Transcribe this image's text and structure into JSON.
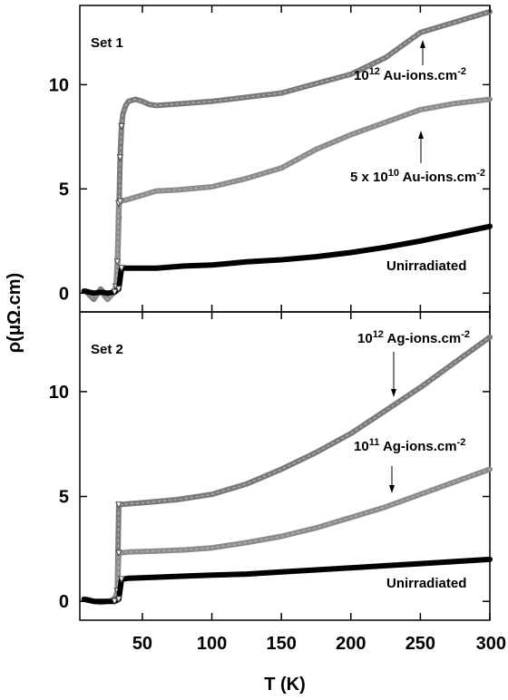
{
  "chart_data": {
    "type": "line",
    "xlabel": "T (K)",
    "ylabel": "ρ(μΩ.cm)",
    "xlim": [
      5,
      300
    ],
    "x_ticks": [
      50,
      100,
      150,
      200,
      250,
      300
    ],
    "panels": [
      {
        "label": "Set 1",
        "ylim": [
          -0.9,
          13.8
        ],
        "y_ticks": [
          0,
          5,
          10
        ],
        "series": [
          {
            "name": "10^12 Au-ions.cm^-2",
            "annotation": {
              "base": "10",
              "exp": "12",
              "rest": " Au-ions.cm",
              "sup": "-2"
            },
            "color": "#7a7a7a",
            "points": [
              [
                10,
                0.05
              ],
              [
                15,
                -0.3
              ],
              [
                20,
                0.2
              ],
              [
                25,
                -0.2
              ],
              [
                29,
                0.0
              ],
              [
                31,
                0.3
              ],
              [
                32,
                1.0
              ],
              [
                33,
                3.5
              ],
              [
                34,
                6.5
              ],
              [
                35,
                8.0
              ],
              [
                36,
                8.6
              ],
              [
                38,
                9.0
              ],
              [
                40,
                9.2
              ],
              [
                45,
                9.3
              ],
              [
                50,
                9.2
              ],
              [
                55,
                9.05
              ],
              [
                60,
                9.0
              ],
              [
                80,
                9.1
              ],
              [
                100,
                9.2
              ],
              [
                125,
                9.4
              ],
              [
                150,
                9.6
              ],
              [
                175,
                10.05
              ],
              [
                200,
                10.5
              ],
              [
                225,
                11.3
              ],
              [
                250,
                12.5
              ],
              [
                275,
                13.0
              ],
              [
                300,
                13.5
              ]
            ]
          },
          {
            "name": "5 x 10^10 Au-ions.cm^-2",
            "annotation": {
              "base": "5 x 10",
              "exp": "10",
              "rest": " Au-ions.cm",
              "sup": "-2"
            },
            "color": "#8c8c8c",
            "points": [
              [
                10,
                0.1
              ],
              [
                15,
                -0.2
              ],
              [
                20,
                0.1
              ],
              [
                25,
                -0.3
              ],
              [
                29,
                0.0
              ],
              [
                31,
                0.3
              ],
              [
                32,
                1.5
              ],
              [
                33,
                4.3
              ],
              [
                34,
                4.4
              ],
              [
                40,
                4.5
              ],
              [
                50,
                4.7
              ],
              [
                60,
                4.9
              ],
              [
                75,
                4.95
              ],
              [
                100,
                5.1
              ],
              [
                125,
                5.5
              ],
              [
                150,
                6.0
              ],
              [
                175,
                6.9
              ],
              [
                200,
                7.6
              ],
              [
                225,
                8.2
              ],
              [
                250,
                8.8
              ],
              [
                275,
                9.1
              ],
              [
                300,
                9.3
              ]
            ]
          },
          {
            "name": "Unirradiated",
            "annotation": {
              "base": "Unirradiated",
              "exp": "",
              "rest": "",
              "sup": ""
            },
            "color": "#000000",
            "points": [
              [
                8,
                0.1
              ],
              [
                15,
                0.0
              ],
              [
                20,
                0.05
              ],
              [
                25,
                0.0
              ],
              [
                30,
                0.05
              ],
              [
                33,
                0.2
              ],
              [
                35,
                1.2
              ],
              [
                40,
                1.2
              ],
              [
                60,
                1.2
              ],
              [
                80,
                1.3
              ],
              [
                100,
                1.35
              ],
              [
                125,
                1.5
              ],
              [
                150,
                1.6
              ],
              [
                175,
                1.75
              ],
              [
                200,
                1.95
              ],
              [
                225,
                2.2
              ],
              [
                250,
                2.5
              ],
              [
                275,
                2.85
              ],
              [
                300,
                3.2
              ]
            ]
          }
        ],
        "annotations": [
          "10^12 Au-ions.cm^-2",
          "5 x 10^10 Au-ions.cm^-2",
          "Unirradiated"
        ]
      },
      {
        "label": "Set 2",
        "ylim": [
          -0.9,
          13.8
        ],
        "y_ticks": [
          0,
          5,
          10
        ],
        "series": [
          {
            "name": "10^12 Ag-ions.cm^-2",
            "annotation": {
              "base": "10",
              "exp": "12",
              "rest": " Ag-ions.cm",
              "sup": "-2"
            },
            "color": "#7a7a7a",
            "points": [
              [
                10,
                0.1
              ],
              [
                15,
                0.0
              ],
              [
                20,
                -0.05
              ],
              [
                25,
                0.0
              ],
              [
                30,
                0.05
              ],
              [
                32,
                0.5
              ],
              [
                33,
                4.6
              ],
              [
                40,
                4.65
              ],
              [
                50,
                4.7
              ],
              [
                75,
                4.85
              ],
              [
                100,
                5.1
              ],
              [
                125,
                5.6
              ],
              [
                150,
                6.3
              ],
              [
                175,
                7.1
              ],
              [
                200,
                8.0
              ],
              [
                225,
                9.1
              ],
              [
                250,
                10.2
              ],
              [
                275,
                11.4
              ],
              [
                300,
                12.6
              ]
            ]
          },
          {
            "name": "10^11 Ag-ions.cm^-2",
            "annotation": {
              "base": "10",
              "exp": "11",
              "rest": " Ag-ions.cm",
              "sup": "-2"
            },
            "color": "#8c8c8c",
            "points": [
              [
                10,
                0.1
              ],
              [
                15,
                0.0
              ],
              [
                20,
                -0.05
              ],
              [
                25,
                0.0
              ],
              [
                30,
                0.05
              ],
              [
                32,
                0.5
              ],
              [
                33,
                2.3
              ],
              [
                40,
                2.35
              ],
              [
                60,
                2.4
              ],
              [
                80,
                2.45
              ],
              [
                100,
                2.55
              ],
              [
                125,
                2.8
              ],
              [
                150,
                3.1
              ],
              [
                175,
                3.5
              ],
              [
                200,
                4.0
              ],
              [
                225,
                4.5
              ],
              [
                250,
                5.1
              ],
              [
                275,
                5.7
              ],
              [
                300,
                6.3
              ]
            ]
          },
          {
            "name": "Unirradiated",
            "annotation": {
              "base": "Unirradiated",
              "exp": "",
              "rest": "",
              "sup": ""
            },
            "color": "#000000",
            "points": [
              [
                8,
                0.1
              ],
              [
                15,
                0.0
              ],
              [
                20,
                0.0
              ],
              [
                25,
                0.0
              ],
              [
                30,
                0.0
              ],
              [
                33,
                0.1
              ],
              [
                35,
                1.05
              ],
              [
                40,
                1.1
              ],
              [
                60,
                1.15
              ],
              [
                80,
                1.2
              ],
              [
                100,
                1.25
              ],
              [
                125,
                1.3
              ],
              [
                150,
                1.4
              ],
              [
                175,
                1.5
              ],
              [
                200,
                1.6
              ],
              [
                225,
                1.7
              ],
              [
                250,
                1.8
              ],
              [
                275,
                1.9
              ],
              [
                300,
                2.0
              ]
            ]
          }
        ],
        "annotations": [
          "10^12 Ag-ions.cm^-2",
          "10^11 Ag-ions.cm^-2",
          "Unirradiated"
        ]
      }
    ]
  }
}
